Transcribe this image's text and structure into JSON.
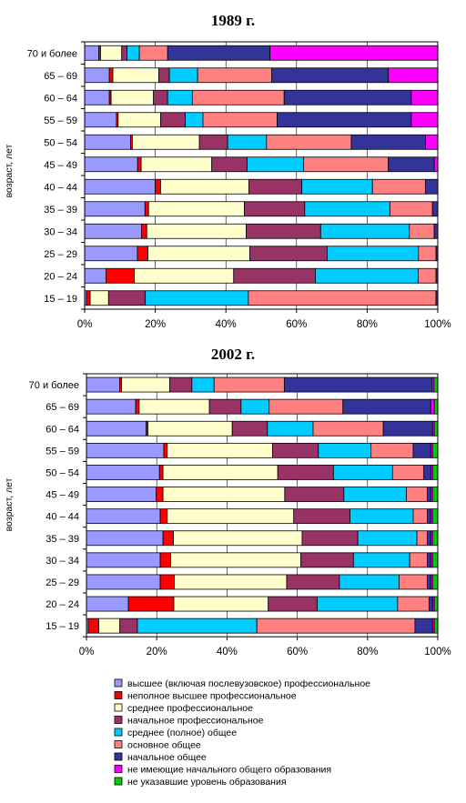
{
  "legend": [
    {
      "label": "высшее  (включая послевузовское) профессиональное",
      "color": "#9999ff"
    },
    {
      "label": "неполное высшее профессиональное",
      "color": "#ff0000"
    },
    {
      "label": "среднее профессиональное",
      "color": "#ffffcc"
    },
    {
      "label": "начальное профессиональное",
      "color": "#993366"
    },
    {
      "label": "среднее (полное) общее",
      "color": "#00ccff"
    },
    {
      "label": "основное общее",
      "color": "#ff8080"
    },
    {
      "label": "начальное общее",
      "color": "#333399"
    },
    {
      "label": "не имеющие начального общего образования",
      "color": "#ff00ff"
    },
    {
      "label": "не указавшие уровень образования",
      "color": "#00cc00"
    }
  ],
  "chart_data": [
    {
      "type": "bar",
      "orientation": "horizontal",
      "stacked": "percent",
      "title": "1989 г.",
      "ylabel": "возраст, лет",
      "xlim": [
        0,
        100
      ],
      "x_ticks": [
        "0%",
        "20%",
        "40%",
        "60%",
        "80%",
        "100%"
      ],
      "categories": [
        "70 и более",
        "65 – 69",
        "60 – 64",
        "55 – 59",
        "50 – 54",
        "45 – 49",
        "40 – 44",
        "35 – 39",
        "30 – 34",
        "25 – 29",
        "20 – 24",
        "15 – 19"
      ],
      "series": [
        {
          "name": "высшее  (включая послевузовское) профессиональное",
          "values": [
            4,
            7,
            7,
            9,
            13,
            15,
            20,
            17,
            16,
            15,
            6,
            0.5
          ]
        },
        {
          "name": "неполное высшее профессиональное",
          "values": [
            0.5,
            1,
            0.5,
            0.5,
            0.5,
            1,
            1.5,
            1,
            1.5,
            3,
            8,
            1
          ]
        },
        {
          "name": "среднее профессиональное",
          "values": [
            6,
            13,
            12,
            12,
            19,
            20,
            25,
            27,
            28,
            29,
            28,
            5
          ]
        },
        {
          "name": "начальное профессиональное",
          "values": [
            1.5,
            3,
            4,
            7,
            8,
            10,
            15,
            17,
            21,
            22,
            23,
            10
          ]
        },
        {
          "name": "среднее (полное) общее",
          "values": [
            3.5,
            8,
            7,
            5,
            11,
            16,
            20,
            24,
            25,
            26,
            29,
            28
          ]
        },
        {
          "name": "основное общее",
          "values": [
            8,
            21,
            26,
            21,
            24,
            24,
            15,
            12,
            7,
            5,
            5,
            51
          ]
        },
        {
          "name": "начальное общее",
          "values": [
            29,
            33,
            36,
            38,
            21,
            13,
            3.5,
            1.5,
            1,
            0.5,
            0.5,
            0.5
          ]
        },
        {
          "name": "не имеющие начального общего образования",
          "values": [
            47.5,
            14,
            7.5,
            7.5,
            3.5,
            1,
            0,
            0,
            0,
            0,
            0,
            0
          ]
        },
        {
          "name": "не указавшие уровень образования",
          "values": [
            0,
            0,
            0,
            0,
            0,
            0,
            0,
            0,
            0,
            0,
            0,
            0
          ]
        }
      ]
    },
    {
      "type": "bar",
      "orientation": "horizontal",
      "stacked": "percent",
      "title": "2002 г.",
      "ylabel": "возраст, лет",
      "xlim": [
        0,
        100
      ],
      "x_ticks": [
        "0%",
        "20%",
        "40%",
        "60%",
        "80%",
        "100%"
      ],
      "categories": [
        "70 и более",
        "65 – 69",
        "60 – 64",
        "55 – 59",
        "50 – 54",
        "45 – 49",
        "40 – 44",
        "35 – 39",
        "30 – 34",
        "25 – 29",
        "20 – 24",
        "15 – 19"
      ],
      "series": [
        {
          "name": "высшее  (включая послевузовское) профессиональное",
          "values": [
            9,
            14,
            17,
            22,
            21,
            20,
            21,
            22,
            21,
            21,
            12,
            0.5
          ]
        },
        {
          "name": "неполное высшее профессиональное",
          "values": [
            0.5,
            1,
            0.5,
            1,
            1,
            2,
            2,
            3,
            3,
            4,
            13,
            3
          ]
        },
        {
          "name": "среднее профессиональное",
          "values": [
            13,
            20,
            24,
            30,
            33,
            35,
            36,
            37,
            37,
            32,
            27,
            6
          ]
        },
        {
          "name": "начальное профессиональное",
          "values": [
            6,
            9,
            10,
            13,
            16,
            17,
            16,
            16,
            15,
            15,
            14,
            5
          ]
        },
        {
          "name": "среднее (полное) общее",
          "values": [
            6,
            8,
            13,
            15,
            17,
            18,
            18,
            17,
            16,
            17,
            23,
            34
          ]
        },
        {
          "name": "основное общее",
          "values": [
            19,
            21,
            20,
            12,
            9,
            6,
            4,
            3,
            5,
            8,
            9,
            45
          ]
        },
        {
          "name": "начальное общее",
          "values": [
            40,
            25,
            14,
            5,
            2,
            1,
            1,
            1,
            1,
            1,
            1,
            5
          ]
        },
        {
          "name": "не имеющие начального общего образования",
          "values": [
            0.5,
            1,
            0.5,
            0.5,
            0.5,
            0.5,
            0.5,
            0.5,
            0.5,
            0.5,
            0.5,
            0.5
          ]
        },
        {
          "name": "не указавшие уровень образования",
          "values": [
            1,
            1,
            1,
            1.5,
            1.5,
            1.5,
            1.5,
            1.5,
            1.5,
            1.5,
            1,
            1
          ]
        }
      ]
    }
  ]
}
